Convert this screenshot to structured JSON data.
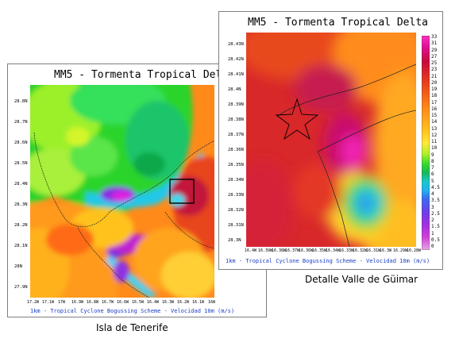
{
  "left_panel": {
    "title": "MM5 - Tormenta Tropical Delta",
    "footer": "1km - Tropical Cyclone Bogussing Scheme - Velocidad 10m (m/s)",
    "caption": "Isla de Tenerife",
    "lat_labels": [
      "28.8N",
      "28.7N",
      "28.6N",
      "28.5N",
      "28.4N",
      "28.3N",
      "28.2N",
      "28.1N",
      "28N",
      "27.9N"
    ],
    "lon_labels": [
      "17.2W",
      "17.1W",
      "17W",
      "16.9W",
      "16.8W",
      "16.7W",
      "16.6W",
      "16.5W",
      "16.4W",
      "16.3W",
      "16.2W",
      "16.1W",
      "16W"
    ]
  },
  "right_panel": {
    "title": "MM5 - Tormenta Tropical Delta",
    "footer": "1km - Tropical Cyclone Bogussing Scheme - Velocidad 10m (m/s)",
    "caption": "Detalle Valle de Güimar",
    "lat_labels": [
      "28.43N",
      "28.42N",
      "28.41N",
      "28.4N",
      "28.39N",
      "28.38N",
      "28.37N",
      "28.36N",
      "28.35N",
      "28.34N",
      "28.33N",
      "28.32N",
      "28.31N",
      "28.3N"
    ],
    "lon_labels": [
      "16.4W",
      "16.39W",
      "16.38W",
      "16.37W",
      "16.36W",
      "16.35W",
      "16.34W",
      "16.33W",
      "16.32W",
      "16.31W",
      "16.3W",
      "16.29W",
      "16.28W"
    ],
    "colorbar_labels": [
      "33",
      "31",
      "29",
      "27",
      "25",
      "23",
      "21",
      "20",
      "19",
      "18",
      "17",
      "16",
      "15",
      "14",
      "13",
      "12",
      "11",
      "10",
      "9",
      "8",
      "7",
      "6",
      "5",
      "4.5",
      "4",
      "3.5",
      "3",
      "2.5",
      "2",
      "1.5",
      "1",
      "0.5",
      "0"
    ]
  }
}
